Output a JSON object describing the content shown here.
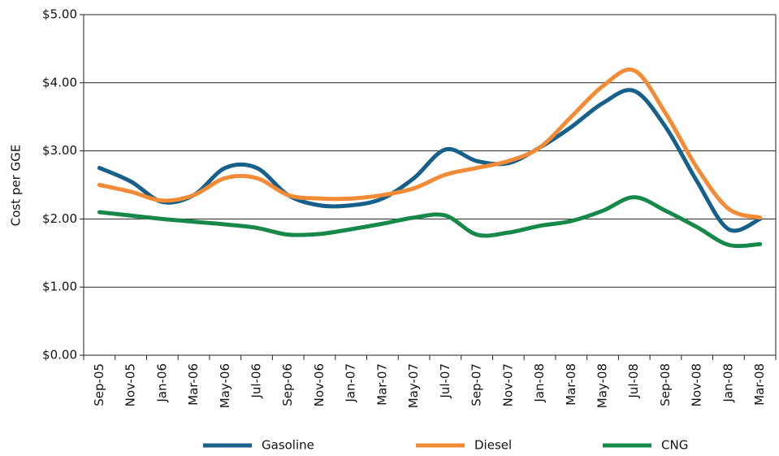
{
  "chart_data": {
    "type": "line",
    "y_label": "Cost per GGE",
    "categories": [
      "Sep-05",
      "Nov-05",
      "Jan-06",
      "Mar-06",
      "May-06",
      "Jul-06",
      "Sep-06",
      "Nov-06",
      "Jan-07",
      "Mar-07",
      "May-07",
      "Jul-07",
      "Sep-07",
      "Nov-07",
      "Jan-08",
      "Mar-08",
      "May-08",
      "Jul-08",
      "Sep-08",
      "Nov-08",
      "Jan-08",
      "Mar-08"
    ],
    "series": [
      {
        "name": "Gasoline",
        "color": "#17608c",
        "values": [
          2.75,
          2.55,
          2.25,
          2.35,
          2.75,
          2.75,
          2.35,
          2.2,
          2.2,
          2.3,
          2.6,
          3.02,
          2.85,
          2.82,
          3.05,
          3.35,
          3.7,
          3.88,
          3.35,
          2.55,
          1.85,
          2.0
        ]
      },
      {
        "name": "Diesel",
        "color": "#f38b36",
        "values": [
          2.5,
          2.4,
          2.27,
          2.35,
          2.6,
          2.6,
          2.35,
          2.3,
          2.3,
          2.35,
          2.45,
          2.65,
          2.75,
          2.85,
          3.05,
          3.5,
          3.95,
          4.18,
          3.55,
          2.75,
          2.15,
          2.02
        ]
      },
      {
        "name": "CNG",
        "color": "#16894a",
        "values": [
          2.1,
          2.05,
          2.0,
          1.96,
          1.92,
          1.87,
          1.77,
          1.78,
          1.85,
          1.93,
          2.02,
          2.05,
          1.77,
          1.8,
          1.9,
          1.97,
          2.12,
          2.32,
          2.12,
          1.88,
          1.62,
          1.63
        ]
      }
    ],
    "ylim": [
      0,
      5
    ],
    "yticks": [
      {
        "value": 0,
        "label": "$0.00"
      },
      {
        "value": 1,
        "label": "$1.00"
      },
      {
        "value": 2,
        "label": "$2.00"
      },
      {
        "value": 3,
        "label": "$3.00"
      },
      {
        "value": 4,
        "label": "$4.00"
      },
      {
        "value": 5,
        "label": "$5.00"
      }
    ],
    "grid": true
  }
}
